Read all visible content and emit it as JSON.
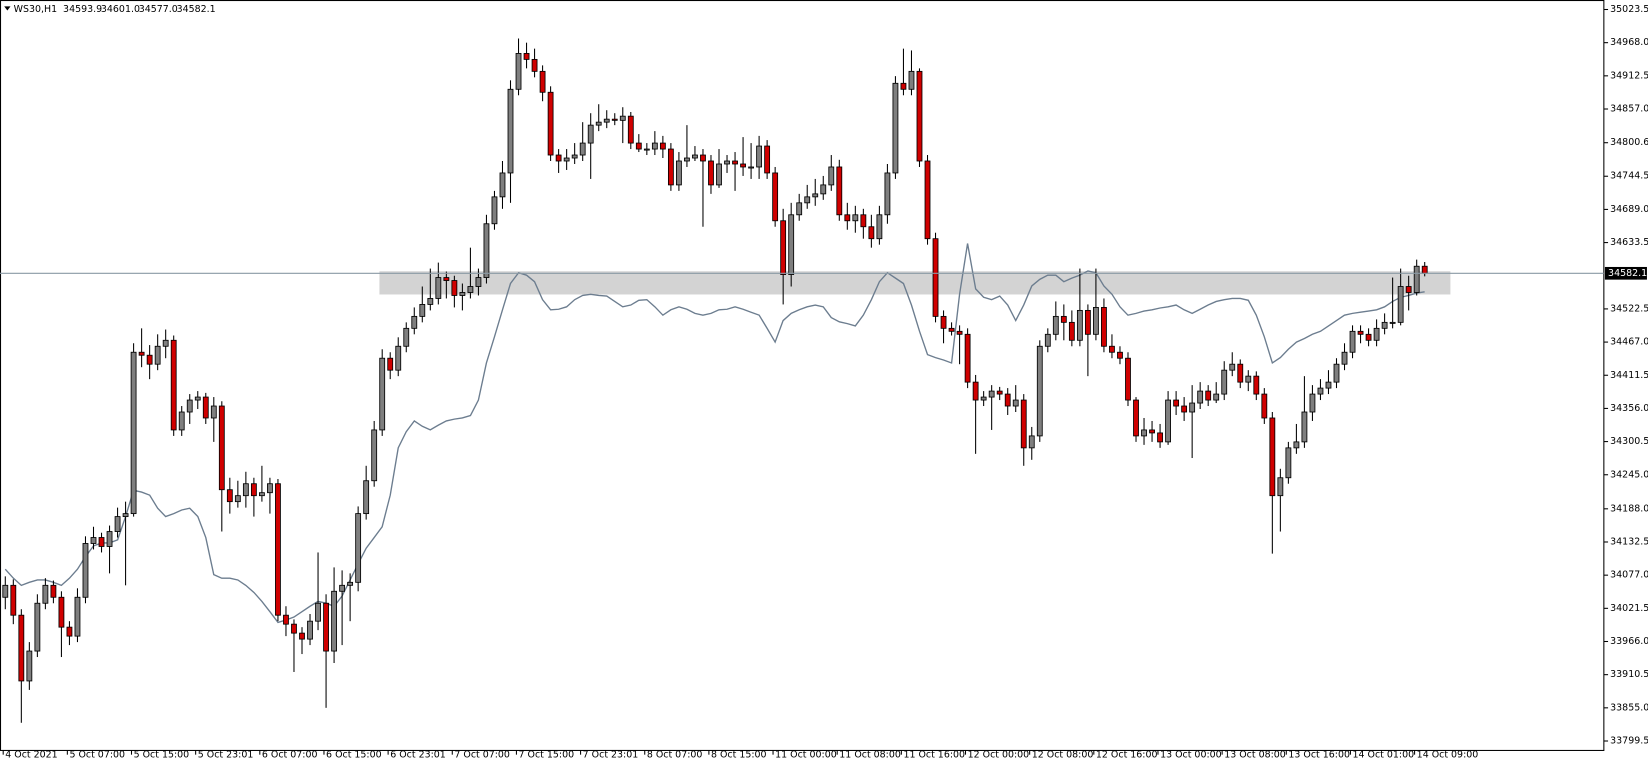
{
  "chart_data": {
    "type": "candlestick",
    "title": "WS30,H1",
    "ohlc_labels": [
      "34593.9",
      "34601.0",
      "34577.0",
      "34582.1"
    ],
    "up_color": "#7f7f7f",
    "down_color": "#d00000",
    "grid": false,
    "ylim": [
      33783.7,
      35039.4
    ],
    "yticks": [
      35023.5,
      {
        "value": 34968,
        "label": "34968.0"
      },
      34912.5,
      {
        "value": 34857,
        "label": "34857.0"
      },
      34800.6,
      34744.5,
      {
        "value": 34689,
        "label": "34689.0"
      },
      34633.5,
      34522.5,
      {
        "value": 34467,
        "label": "34467.0"
      },
      34411.5,
      {
        "value": 34356,
        "label": "34356.0"
      },
      34300.5,
      {
        "value": 34245,
        "label": "34245.0"
      },
      {
        "value": 34188,
        "label": "34188.0"
      },
      34132.5,
      {
        "value": 34077,
        "label": "34077.0"
      },
      34021.5,
      {
        "value": 33966,
        "label": "33966.0"
      },
      33910.5,
      {
        "value": 33855,
        "label": "33855.0"
      },
      33799.5
    ],
    "xlim": [
      -0.66,
      199.34
    ],
    "xticks": [
      {
        "value": 0,
        "label": "4 Oct 2021"
      },
      {
        "value": 8,
        "label": "5 Oct 07:00"
      },
      {
        "value": 16,
        "label": "5 Oct 15:00"
      },
      {
        "value": 24,
        "label": "5 Oct 23:01"
      },
      {
        "value": 32,
        "label": "6 Oct 07:00"
      },
      {
        "value": 40,
        "label": "6 Oct 15:00"
      },
      {
        "value": 48,
        "label": "6 Oct 23:01"
      },
      {
        "value": 56,
        "label": "7 Oct 07:00"
      },
      {
        "value": 64,
        "label": "7 Oct 15:00"
      },
      {
        "value": 72,
        "label": "7 Oct 23:01"
      },
      {
        "value": 80,
        "label": "8 Oct 07:00"
      },
      {
        "value": 88,
        "label": "8 Oct 15:00"
      },
      {
        "value": 96,
        "label": "11 Oct 00:00"
      },
      {
        "value": 104,
        "label": "11 Oct 08:00"
      },
      {
        "value": 112,
        "label": "11 Oct 16:00"
      },
      {
        "value": 120,
        "label": "12 Oct 00:00"
      },
      {
        "value": 128,
        "label": "12 Oct 08:00"
      },
      {
        "value": 136,
        "label": "12 Oct 16:00"
      },
      {
        "value": 144,
        "label": "13 Oct 00:00"
      },
      {
        "value": 152,
        "label": "13 Oct 08:00"
      },
      {
        "value": 160,
        "label": "13 Oct 16:00"
      },
      {
        "value": 168,
        "label": "14 Oct 01:00"
      },
      {
        "value": 176,
        "label": "14 Oct 09:00"
      }
    ],
    "candles": [
      [
        34040,
        34075,
        34020,
        34060
      ],
      [
        34060,
        34070,
        33995,
        34010
      ],
      [
        34010,
        34020,
        33830,
        33900
      ],
      [
        33900,
        33965,
        33885,
        33950
      ],
      [
        33950,
        34045,
        33940,
        34030
      ],
      [
        34030,
        34072,
        34020,
        34060
      ],
      [
        34060,
        34068,
        34030,
        34040
      ],
      [
        34040,
        34050,
        33940,
        33990
      ],
      [
        33990,
        34000,
        33960,
        33975
      ],
      [
        33975,
        34055,
        33965,
        34040
      ],
      [
        34040,
        34142,
        34030,
        34130
      ],
      [
        34130,
        34158,
        34120,
        34140
      ],
      [
        34140,
        34148,
        34115,
        34125
      ],
      [
        34125,
        34160,
        34080,
        34150
      ],
      [
        34150,
        34190,
        34140,
        34175
      ],
      [
        34175,
        34200,
        34060,
        34180
      ],
      [
        34180,
        34465,
        34175,
        34450
      ],
      [
        34450,
        34490,
        34425,
        34445
      ],
      [
        34445,
        34462,
        34405,
        34430
      ],
      [
        34430,
        34480,
        34420,
        34460
      ],
      [
        34460,
        34488,
        34440,
        34470
      ],
      [
        34470,
        34478,
        34310,
        34320
      ],
      [
        34320,
        34360,
        34310,
        34350
      ],
      [
        34350,
        34380,
        34330,
        34370
      ],
      [
        34370,
        34385,
        34355,
        34375
      ],
      [
        34375,
        34382,
        34330,
        34340
      ],
      [
        34340,
        34375,
        34300,
        34360
      ],
      [
        34360,
        34368,
        34150,
        34220
      ],
      [
        34220,
        34240,
        34180,
        34200
      ],
      [
        34200,
        34235,
        34190,
        34210
      ],
      [
        34210,
        34250,
        34190,
        34230
      ],
      [
        34230,
        34240,
        34175,
        34210
      ],
      [
        34210,
        34260,
        34200,
        34215
      ],
      [
        34215,
        34240,
        34180,
        34230
      ],
      [
        34230,
        34238,
        34000,
        34010
      ],
      [
        34010,
        34025,
        33975,
        33995
      ],
      [
        33995,
        34003,
        33915,
        33980
      ],
      [
        33980,
        33990,
        33945,
        33970
      ],
      [
        33970,
        34012,
        33960,
        34000
      ],
      [
        34000,
        34115,
        33985,
        34030
      ],
      [
        34030,
        34045,
        33855,
        33950
      ],
      [
        33950,
        34090,
        33930,
        34050
      ],
      [
        34050,
        34085,
        33960,
        34060
      ],
      [
        34060,
        34080,
        34000,
        34065
      ],
      [
        34065,
        34192,
        34050,
        34180
      ],
      [
        34180,
        34260,
        34170,
        34235
      ],
      [
        34235,
        34335,
        34225,
        34320
      ],
      [
        34320,
        34455,
        34310,
        34440
      ],
      [
        34440,
        34450,
        34405,
        34420
      ],
      [
        34420,
        34475,
        34410,
        34460
      ],
      [
        34460,
        34500,
        34450,
        34490
      ],
      [
        34490,
        34525,
        34480,
        34510
      ],
      [
        34510,
        34560,
        34500,
        34530
      ],
      [
        34530,
        34590,
        34520,
        34540
      ],
      [
        34540,
        34600,
        34530,
        34575
      ],
      [
        34575,
        34585,
        34540,
        34570
      ],
      [
        34570,
        34578,
        34525,
        34545
      ],
      [
        34545,
        34565,
        34520,
        34550
      ],
      [
        34550,
        34625,
        34540,
        34560
      ],
      [
        34560,
        34590,
        34545,
        34575
      ],
      [
        34575,
        34680,
        34565,
        34665
      ],
      [
        34665,
        34720,
        34655,
        34710
      ],
      [
        34710,
        34770,
        34690,
        34750
      ],
      [
        34750,
        34905,
        34700,
        34890
      ],
      [
        34890,
        34975,
        34880,
        34950
      ],
      [
        34950,
        34968,
        34925,
        34940
      ],
      [
        34940,
        34958,
        34910,
        34920
      ],
      [
        34920,
        34930,
        34870,
        34885
      ],
      [
        34885,
        34895,
        34770,
        34780
      ],
      [
        34780,
        34790,
        34750,
        34770
      ],
      [
        34770,
        34790,
        34755,
        34775
      ],
      [
        34775,
        34800,
        34765,
        34780
      ],
      [
        34780,
        34835,
        34770,
        34800
      ],
      [
        34800,
        34850,
        34740,
        34830
      ],
      [
        34830,
        34865,
        34820,
        34835
      ],
      [
        34835,
        34855,
        34825,
        34840
      ],
      [
        34840,
        34850,
        34830,
        34838
      ],
      [
        34838,
        34860,
        34800,
        34845
      ],
      [
        34845,
        34852,
        34790,
        34800
      ],
      [
        34800,
        34815,
        34785,
        34790
      ],
      [
        34790,
        34800,
        34780,
        34790
      ],
      [
        34790,
        34820,
        34780,
        34800
      ],
      [
        34800,
        34812,
        34775,
        34790
      ],
      [
        34790,
        34800,
        34720,
        34730
      ],
      [
        34730,
        34785,
        34720,
        34770
      ],
      [
        34770,
        34830,
        34760,
        34775
      ],
      [
        34775,
        34795,
        34770,
        34780
      ],
      [
        34780,
        34790,
        34660,
        34770
      ],
      [
        34770,
        34780,
        34715,
        34730
      ],
      [
        34730,
        34790,
        34725,
        34765
      ],
      [
        34765,
        34780,
        34750,
        34770
      ],
      [
        34770,
        34785,
        34720,
        34765
      ],
      [
        34765,
        34810,
        34745,
        34760
      ],
      [
        34760,
        34800,
        34740,
        34760
      ],
      [
        34760,
        34812,
        34740,
        34795
      ],
      [
        34795,
        34805,
        34740,
        34750
      ],
      [
        34750,
        34760,
        34660,
        34670
      ],
      [
        34670,
        34690,
        34530,
        34580
      ],
      [
        34580,
        34700,
        34560,
        34680
      ],
      [
        34680,
        34715,
        34670,
        34700
      ],
      [
        34700,
        34730,
        34690,
        34710
      ],
      [
        34710,
        34740,
        34695,
        34715
      ],
      [
        34715,
        34745,
        34705,
        34730
      ],
      [
        34730,
        34780,
        34720,
        34760
      ],
      [
        34760,
        34772,
        34670,
        34680
      ],
      [
        34680,
        34700,
        34655,
        34670
      ],
      [
        34670,
        34695,
        34650,
        34680
      ],
      [
        34680,
        34690,
        34640,
        34660
      ],
      [
        34660,
        34680,
        34625,
        34640
      ],
      [
        34640,
        34695,
        34630,
        34680
      ],
      [
        34680,
        34765,
        34665,
        34750
      ],
      [
        34750,
        34912,
        34740,
        34900
      ],
      [
        34900,
        34958,
        34880,
        34890
      ],
      [
        34890,
        34955,
        34880,
        34920
      ],
      [
        34920,
        34925,
        34760,
        34770
      ],
      [
        34770,
        34780,
        34630,
        34640
      ],
      [
        34640,
        34650,
        34500,
        34510
      ],
      [
        34510,
        34520,
        34465,
        34490
      ],
      [
        34490,
        34500,
        34478,
        34485
      ],
      [
        34485,
        34495,
        34430,
        34480
      ],
      [
        34480,
        34490,
        34390,
        34400
      ],
      [
        34400,
        34412,
        34280,
        34370
      ],
      [
        34370,
        34385,
        34360,
        34375
      ],
      [
        34375,
        34395,
        34320,
        34385
      ],
      [
        34385,
        34392,
        34370,
        34380
      ],
      [
        34380,
        34390,
        34345,
        34360
      ],
      [
        34360,
        34395,
        34350,
        34370
      ],
      [
        34370,
        34380,
        34260,
        34290
      ],
      [
        34290,
        34325,
        34270,
        34310
      ],
      [
        34310,
        34470,
        34300,
        34460
      ],
      [
        34460,
        34490,
        34450,
        34480
      ],
      [
        34480,
        34535,
        34470,
        34510
      ],
      [
        34510,
        34530,
        34470,
        34500
      ],
      [
        34500,
        34520,
        34460,
        34470
      ],
      [
        34470,
        34590,
        34460,
        34520
      ],
      [
        34520,
        34530,
        34410,
        34480
      ],
      [
        34480,
        34590,
        34470,
        34525
      ],
      [
        34525,
        34540,
        34450,
        34460
      ],
      [
        34460,
        34480,
        34440,
        34450
      ],
      [
        34450,
        34460,
        34430,
        34440
      ],
      [
        34440,
        34450,
        34360,
        34370
      ],
      [
        34370,
        34375,
        34300,
        34310
      ],
      [
        34310,
        34340,
        34295,
        34320
      ],
      [
        34320,
        34335,
        34300,
        34315
      ],
      [
        34315,
        34330,
        34290,
        34300
      ],
      [
        34300,
        34385,
        34295,
        34370
      ],
      [
        34370,
        34385,
        34345,
        34360
      ],
      [
        34360,
        34375,
        34335,
        34350
      ],
      [
        34350,
        34395,
        34273,
        34365
      ],
      [
        34365,
        34400,
        34355,
        34385
      ],
      [
        34385,
        34395,
        34360,
        34370
      ],
      [
        34370,
        34400,
        34365,
        34380
      ],
      [
        34380,
        34435,
        34370,
        34420
      ],
      [
        34420,
        34450,
        34410,
        34430
      ],
      [
        34430,
        34438,
        34390,
        34400
      ],
      [
        34400,
        34420,
        34385,
        34410
      ],
      [
        34410,
        34418,
        34370,
        34380
      ],
      [
        34380,
        34390,
        34330,
        34340
      ],
      [
        34340,
        34350,
        34113,
        34210
      ],
      [
        34210,
        34255,
        34150,
        34240
      ],
      [
        34240,
        34300,
        34230,
        34290
      ],
      [
        34290,
        34330,
        34280,
        34300
      ],
      [
        34300,
        34410,
        34290,
        34350
      ],
      [
        34350,
        34395,
        34335,
        34380
      ],
      [
        34380,
        34405,
        34370,
        34390
      ],
      [
        34390,
        34420,
        34380,
        34400
      ],
      [
        34400,
        34440,
        34390,
        34430
      ],
      [
        34430,
        34465,
        34420,
        34450
      ],
      [
        34450,
        34495,
        34440,
        34485
      ],
      [
        34485,
        34495,
        34465,
        34480
      ],
      [
        34480,
        34490,
        34460,
        34470
      ],
      [
        34470,
        34505,
        34460,
        34490
      ],
      [
        34490,
        34515,
        34480,
        34500
      ],
      [
        34500,
        34575,
        34490,
        34500
      ],
      [
        34500,
        34590,
        34495,
        34560
      ],
      [
        34560,
        34578,
        34520,
        34550
      ],
      [
        34550,
        34605,
        34545,
        34593.9
      ],
      [
        34593.9,
        34601.0,
        34577.0,
        34582.1
      ]
    ],
    "line": {
      "color": "#6c7d8f",
      "values": [
        34087,
        34072,
        34060,
        34065,
        34069,
        34069,
        34065,
        34060,
        34072,
        34087,
        34108,
        34126,
        34131,
        34131,
        34136,
        34175,
        34219,
        34216,
        34211,
        34189,
        34175,
        34180,
        34186,
        34189,
        34175,
        34140,
        34078,
        34072,
        34072,
        34069,
        34060,
        34048,
        34033,
        34016,
        33998,
        34002,
        34007,
        34016,
        34025,
        34033,
        34030,
        34025,
        34042,
        34069,
        34096,
        34122,
        34140,
        34158,
        34211,
        34290,
        34317,
        34335,
        34326,
        34320,
        34328,
        34335,
        34338,
        34340,
        34344,
        34370,
        34432,
        34476,
        34521,
        34565,
        34583,
        34579,
        34568,
        34538,
        34521,
        34522,
        34526,
        34538,
        34545,
        34547,
        34545,
        34544,
        34535,
        34526,
        34529,
        34537,
        34538,
        34526,
        34512,
        34521,
        34526,
        34522,
        34515,
        34512,
        34515,
        34521,
        34522,
        34526,
        34522,
        34517,
        34512,
        34490,
        34467,
        34503,
        34515,
        34521,
        34526,
        34529,
        34526,
        34508,
        34501,
        34498,
        34494,
        34512,
        34538,
        34568,
        34583,
        34574,
        34565,
        34529,
        34485,
        34446,
        34441,
        34437,
        34432,
        34547,
        34632,
        34556,
        34542,
        34538,
        34544,
        34529,
        34503,
        34529,
        34561,
        34572,
        34579,
        34579,
        34568,
        34574,
        34579,
        34586,
        34583,
        34561,
        34547,
        34526,
        34512,
        34515,
        34519,
        34521,
        34524,
        34526,
        34529,
        34521,
        34515,
        34522,
        34529,
        34535,
        34538,
        34540,
        34540,
        34537,
        34512,
        34476,
        34432,
        34441,
        34455,
        34467,
        34473,
        34480,
        34485,
        34494,
        34503,
        34512,
        34515,
        34517,
        34519,
        34521,
        34526,
        34535,
        34542,
        34545,
        34549,
        34551
      ]
    }
  }
}
